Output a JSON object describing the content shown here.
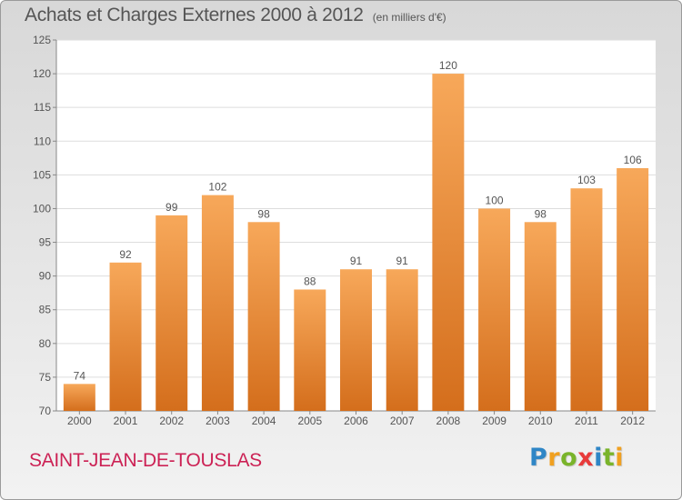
{
  "title": "Achats et Charges Externes 2000 à 2012",
  "subtitle": "(en milliers d'€)",
  "place": "SAINT-JEAN-DE-TOUSLAS",
  "logo": {
    "letters": [
      "P",
      "r",
      "o",
      "x",
      "i",
      "t",
      "i"
    ],
    "colors": [
      "#2f86c6",
      "#f0a020",
      "#7ab42b",
      "#e83a3a",
      "#2f86c6",
      "#7ab42b",
      "#f0a020"
    ]
  },
  "colors": {
    "bar_top": "#f7a85a",
    "bar_bottom": "#d46e1c",
    "plot_bg": "#ffffff",
    "grid": "#dddddd",
    "text": "#555555",
    "place": "#cc2255"
  },
  "chart_data": {
    "type": "bar",
    "categories": [
      "2000",
      "2001",
      "2002",
      "2003",
      "2004",
      "2005",
      "2006",
      "2007",
      "2008",
      "2009",
      "2010",
      "2011",
      "2012"
    ],
    "values": [
      74,
      92,
      99,
      102,
      98,
      88,
      91,
      91,
      120,
      100,
      98,
      103,
      106
    ],
    "title": "Achats et Charges Externes 2000 à 2012",
    "subtitle": "(en milliers d'€)",
    "xlabel": "",
    "ylabel": "",
    "ylim": [
      70,
      125
    ],
    "yticks": [
      70,
      75,
      80,
      85,
      90,
      95,
      100,
      105,
      110,
      115,
      120,
      125
    ],
    "grid": true,
    "data_labels": true
  }
}
